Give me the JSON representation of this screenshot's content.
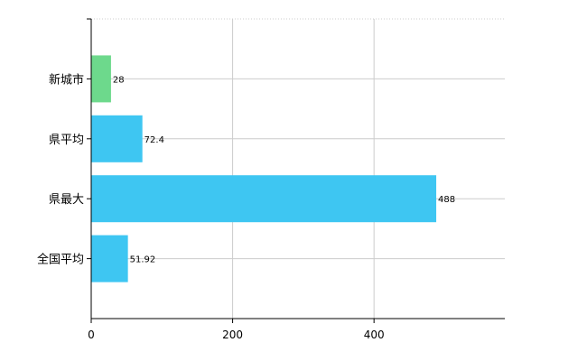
{
  "chart_data": {
    "type": "bar",
    "orientation": "horizontal",
    "categories": [
      "新城市",
      "県平均",
      "県最大",
      "全国平均"
    ],
    "values": [
      28,
      72.4,
      488,
      51.92
    ],
    "value_labels": [
      "28",
      "72.4",
      "488",
      "51.92"
    ],
    "bar_colors": [
      "#6dd98c",
      "#3ec6f2",
      "#3ec6f2",
      "#3ec6f2"
    ],
    "x_ticks": [
      0,
      200,
      400
    ],
    "x_tick_labels": [
      "0",
      "200",
      "400"
    ],
    "xlim": [
      0,
      585
    ],
    "grid": true,
    "legend": "none"
  }
}
